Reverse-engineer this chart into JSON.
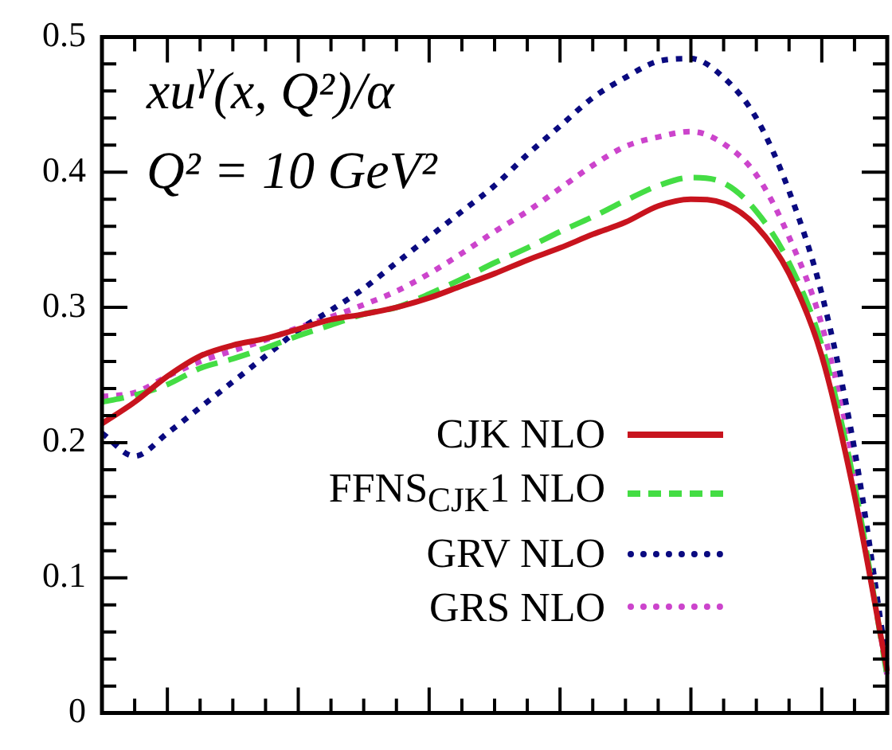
{
  "chart_data": {
    "type": "line",
    "categories": [
      null,
      null,
      null,
      null,
      null,
      null,
      null,
      null,
      null,
      null,
      null,
      null,
      null,
      null,
      null,
      null,
      null,
      null,
      null,
      null,
      null,
      null,
      null,
      null,
      null
    ],
    "annotations": [
      "xu$^{γ}$(x, Q²)/α",
      "Q² = 10 GeV²"
    ],
    "series": [
      {
        "name": "CJK NLO",
        "color": "#c8141e",
        "line_style": "solid",
        "values": [
          0.214,
          0.23,
          0.249,
          0.264,
          0.272,
          0.277,
          0.284,
          0.291,
          0.295,
          0.3,
          0.307,
          0.316,
          0.325,
          0.335,
          0.344,
          0.354,
          0.363,
          0.375,
          0.38,
          0.377,
          0.36,
          0.325,
          0.264,
          0.161,
          0.031
        ]
      },
      {
        "name": "FFNS$_{CJK}$1 NLO",
        "color": "#44dd44",
        "line_style": "dashed",
        "values": [
          0.23,
          0.235,
          0.243,
          0.255,
          0.262,
          0.27,
          0.279,
          0.287,
          0.295,
          0.3,
          0.31,
          0.321,
          0.333,
          0.344,
          0.356,
          0.367,
          0.379,
          0.39,
          0.396,
          0.392,
          0.371,
          0.333,
          0.272,
          0.169,
          0.027
        ]
      },
      {
        "name": "GRV NLO",
        "color": "#0a0a80",
        "line_style": "dotted",
        "values": [
          0.207,
          0.19,
          0.207,
          0.226,
          0.245,
          0.264,
          0.283,
          0.298,
          0.314,
          0.333,
          0.352,
          0.371,
          0.39,
          0.413,
          0.434,
          0.455,
          0.47,
          0.482,
          0.484,
          0.47,
          0.44,
          0.386,
          0.31,
          0.195,
          0.035
        ]
      },
      {
        "name": "GRS NLO",
        "color": "#cc44cc",
        "line_style": "dotted",
        "values": [
          0.234,
          0.237,
          0.249,
          0.26,
          0.268,
          0.276,
          0.285,
          0.293,
          0.302,
          0.312,
          0.325,
          0.34,
          0.356,
          0.371,
          0.388,
          0.405,
          0.419,
          0.426,
          0.43,
          0.421,
          0.398,
          0.352,
          0.287,
          0.18,
          0.027
        ]
      }
    ],
    "ylim": [
      0,
      0.5
    ],
    "yticks": [
      0,
      {
        "value": 0.02,
        "label": null
      },
      {
        "value": 0.04,
        "label": null
      },
      {
        "value": 0.06,
        "label": null
      },
      {
        "value": 0.08,
        "label": null
      },
      0.1,
      {
        "value": 0.12,
        "label": null
      },
      {
        "value": 0.14,
        "label": null
      },
      {
        "value": 0.16,
        "label": null
      },
      {
        "value": 0.18,
        "label": null
      },
      0.2,
      {
        "value": 0.22,
        "label": null
      },
      {
        "value": 0.24,
        "label": null
      },
      {
        "value": 0.26,
        "label": null
      },
      {
        "value": 0.28,
        "label": null
      },
      0.3,
      {
        "value": 0.32,
        "label": null
      },
      {
        "value": 0.34,
        "label": null
      },
      {
        "value": 0.36,
        "label": null
      },
      {
        "value": 0.38,
        "label": null
      },
      0.4,
      {
        "value": 0.42,
        "label": null
      },
      {
        "value": 0.44,
        "label": null
      },
      {
        "value": 0.46,
        "label": null
      },
      {
        "value": 0.48,
        "label": null
      },
      0.5
    ],
    "tick_labels": "y",
    "grid": false,
    "legend": "bottom right",
    "marker": "none"
  }
}
